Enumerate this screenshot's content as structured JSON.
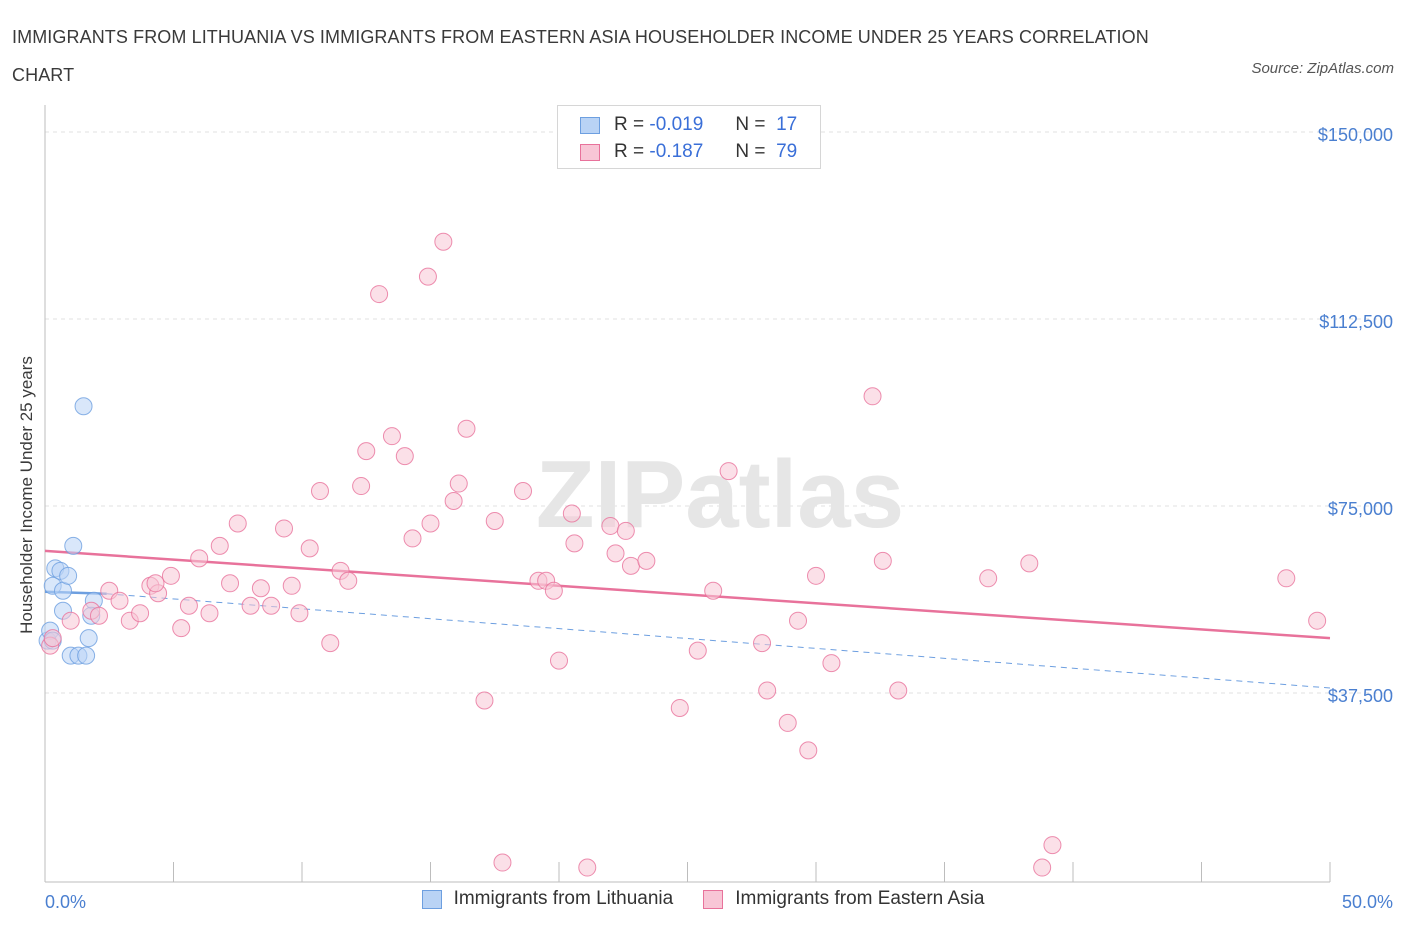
{
  "title": "IMMIGRANTS FROM LITHUANIA VS IMMIGRANTS FROM EASTERN ASIA HOUSEHOLDER INCOME UNDER 25 YEARS CORRELATION CHART",
  "source": "Source: ZipAtlas.com",
  "watermark": "ZIPatlas",
  "colors": {
    "blue": "#6d9fe0",
    "blue_fill": "#b9d3f5",
    "pink": "#e8729b",
    "pink_fill": "#f8c6d6",
    "axis_label": "#4a7fd0"
  },
  "legend": {
    "rows": [
      {
        "r_label": "R =",
        "r_value": "-0.019",
        "n_label": "N =",
        "n_value": "17"
      },
      {
        "r_label": "R =",
        "r_value": "-0.187",
        "n_label": "N =",
        "n_value": "79"
      }
    ]
  },
  "bottom_legend": [
    "Immigrants from Lithuania",
    "Immigrants from Eastern Asia"
  ],
  "chart_data": {
    "type": "scatter",
    "title": "IMMIGRANTS FROM LITHUANIA VS IMMIGRANTS FROM EASTERN ASIA HOUSEHOLDER INCOME UNDER 25 YEARS CORRELATION CHART",
    "xlabel": "",
    "ylabel": "Householder Income Under 25 years",
    "xlim": [
      0,
      50
    ],
    "ylim": [
      0,
      152000
    ],
    "x_tick_labels": [
      "0.0%",
      "50.0%"
    ],
    "y_ticks": [
      37500,
      75000,
      112500,
      150000
    ],
    "y_tick_labels": [
      "$37,500",
      "$75,000",
      "$112,500",
      "$150,000"
    ],
    "grid": true,
    "series": [
      {
        "name": "Immigrants from Lithuania",
        "color": "blue",
        "points": [
          [
            0.1,
            48000
          ],
          [
            0.2,
            50000
          ],
          [
            0.3,
            59000
          ],
          [
            0.4,
            62500
          ],
          [
            0.6,
            62000
          ],
          [
            0.7,
            58000
          ],
          [
            0.7,
            54000
          ],
          [
            0.9,
            61000
          ],
          [
            1.1,
            67000
          ],
          [
            1.0,
            45000
          ],
          [
            1.3,
            45000
          ],
          [
            1.6,
            45000
          ],
          [
            1.7,
            48500
          ],
          [
            1.5,
            95000
          ],
          [
            1.9,
            56000
          ],
          [
            1.8,
            53000
          ],
          [
            0.3,
            48000
          ]
        ],
        "trend": {
          "x": [
            0,
            2.4
          ],
          "y": [
            57800,
            57400
          ]
        },
        "trend_ext": {
          "x": [
            2.4,
            50
          ],
          "y": [
            57400,
            38500
          ]
        }
      },
      {
        "name": "Immigrants from Eastern Asia",
        "color": "pink",
        "points": [
          [
            0.2,
            47000
          ],
          [
            0.3,
            48500
          ],
          [
            1.0,
            52000
          ],
          [
            1.8,
            54000
          ],
          [
            2.1,
            53000
          ],
          [
            2.5,
            58000
          ],
          [
            2.9,
            56000
          ],
          [
            3.3,
            52000
          ],
          [
            3.7,
            53500
          ],
          [
            4.1,
            59000
          ],
          [
            4.4,
            57500
          ],
          [
            4.9,
            61000
          ],
          [
            5.3,
            50500
          ],
          [
            5.6,
            55000
          ],
          [
            6.0,
            64500
          ],
          [
            6.4,
            53500
          ],
          [
            6.8,
            67000
          ],
          [
            7.2,
            59500
          ],
          [
            7.5,
            71500
          ],
          [
            8.0,
            55000
          ],
          [
            8.4,
            58500
          ],
          [
            8.8,
            55000
          ],
          [
            9.3,
            70500
          ],
          [
            9.6,
            59000
          ],
          [
            9.9,
            53500
          ],
          [
            10.3,
            66500
          ],
          [
            10.7,
            78000
          ],
          [
            11.1,
            47500
          ],
          [
            11.5,
            62000
          ],
          [
            11.8,
            60000
          ],
          [
            12.3,
            79000
          ],
          [
            12.5,
            86000
          ],
          [
            13.0,
            117500
          ],
          [
            13.5,
            89000
          ],
          [
            14.0,
            85000
          ],
          [
            14.3,
            68500
          ],
          [
            14.9,
            121000
          ],
          [
            15.0,
            71500
          ],
          [
            15.5,
            128000
          ],
          [
            15.9,
            76000
          ],
          [
            16.1,
            79500
          ],
          [
            16.4,
            90500
          ],
          [
            17.1,
            36000
          ],
          [
            17.5,
            72000
          ],
          [
            17.8,
            3500
          ],
          [
            18.6,
            78000
          ],
          [
            19.2,
            60000
          ],
          [
            19.5,
            60000
          ],
          [
            19.8,
            58000
          ],
          [
            20.0,
            44000
          ],
          [
            20.5,
            73500
          ],
          [
            20.6,
            67500
          ],
          [
            21.1,
            2500
          ],
          [
            22.0,
            71000
          ],
          [
            22.2,
            65500
          ],
          [
            22.6,
            70000
          ],
          [
            22.8,
            63000
          ],
          [
            23.4,
            64000
          ],
          [
            24.7,
            34500
          ],
          [
            25.4,
            46000
          ],
          [
            26.0,
            58000
          ],
          [
            26.6,
            82000
          ],
          [
            27.9,
            47500
          ],
          [
            28.1,
            38000
          ],
          [
            28.9,
            31500
          ],
          [
            29.3,
            52000
          ],
          [
            29.7,
            26000
          ],
          [
            30.0,
            61000
          ],
          [
            30.6,
            43500
          ],
          [
            32.2,
            97000
          ],
          [
            32.6,
            64000
          ],
          [
            33.2,
            38000
          ],
          [
            36.7,
            60500
          ],
          [
            38.3,
            63500
          ],
          [
            38.8,
            2500
          ],
          [
            39.2,
            7000
          ],
          [
            48.3,
            60500
          ],
          [
            49.5,
            52000
          ],
          [
            4.3,
            59500
          ]
        ],
        "trend": {
          "x": [
            0,
            50
          ],
          "y": [
            66000,
            48500
          ]
        }
      }
    ]
  }
}
